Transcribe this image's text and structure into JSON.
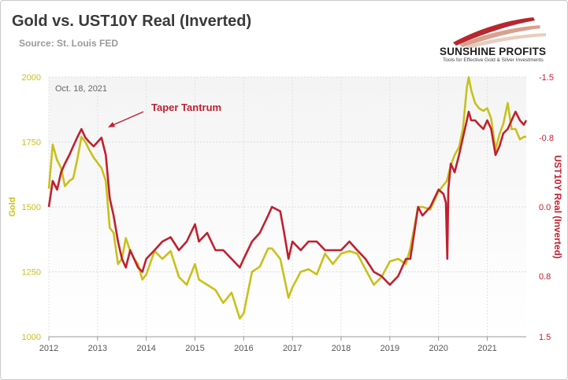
{
  "header": {
    "title": "Gold vs. UST10Y Real (Inverted)",
    "source": "Source: St. Louis FED"
  },
  "logo": {
    "name": "SUNSHINE PROFITS",
    "tagline": "Tools for Effective Gold & Silver Investments"
  },
  "colors": {
    "gold": "#c8c11a",
    "real_yield": "#c0202f",
    "plot_bg_top": "#f4f4f4",
    "plot_bg_bottom": "#ffffff",
    "axis_text": "#555555"
  },
  "chart_data": {
    "type": "line",
    "date_label": "Oct. 18, 2021",
    "annotation": {
      "text": "Taper Tantrum",
      "x": 2013.0,
      "y_right": -0.8
    },
    "xlabel": "",
    "xlim": [
      2012.0,
      2021.8
    ],
    "x_ticks": [
      "2012",
      "2013",
      "2014",
      "2015",
      "2016",
      "2017",
      "2018",
      "2019",
      "2020",
      "2021"
    ],
    "y_left": {
      "label": "Gold",
      "lim": [
        1000,
        2000
      ],
      "ticks": [
        "1000",
        "1250",
        "1500",
        "1750",
        "2000"
      ]
    },
    "y_right": {
      "label": "UST10Y Real (Inverted)",
      "lim": [
        -1.5,
        1.5
      ],
      "inverted": true,
      "ticks": [
        "-1.5",
        "-0.8",
        "0.0",
        "0.8",
        "1.5"
      ]
    },
    "grid": true,
    "series": [
      {
        "name": "Gold",
        "axis": "left",
        "x": [
          2012.0,
          2012.08,
          2012.17,
          2012.25,
          2012.33,
          2012.42,
          2012.5,
          2012.58,
          2012.67,
          2012.75,
          2012.83,
          2012.92,
          2013.0,
          2013.08,
          2013.17,
          2013.25,
          2013.33,
          2013.42,
          2013.5,
          2013.58,
          2013.67,
          2013.75,
          2013.83,
          2013.92,
          2014.0,
          2014.17,
          2014.33,
          2014.5,
          2014.67,
          2014.83,
          2015.0,
          2015.08,
          2015.25,
          2015.42,
          2015.58,
          2015.75,
          2015.92,
          2016.0,
          2016.17,
          2016.33,
          2016.5,
          2016.58,
          2016.75,
          2016.83,
          2016.92,
          2017.0,
          2017.17,
          2017.33,
          2017.5,
          2017.67,
          2017.83,
          2018.0,
          2018.17,
          2018.33,
          2018.5,
          2018.67,
          2018.83,
          2019.0,
          2019.17,
          2019.33,
          2019.42,
          2019.5,
          2019.58,
          2019.67,
          2019.83,
          2020.0,
          2020.17,
          2020.25,
          2020.33,
          2020.42,
          2020.5,
          2020.58,
          2020.62,
          2020.67,
          2020.75,
          2020.83,
          2020.92,
          2021.0,
          2021.08,
          2021.17,
          2021.25,
          2021.33,
          2021.42,
          2021.5,
          2021.58,
          2021.67,
          2021.75,
          2021.8
        ],
        "values": [
          1570,
          1740,
          1680,
          1650,
          1580,
          1600,
          1610,
          1680,
          1770,
          1750,
          1720,
          1690,
          1670,
          1650,
          1600,
          1420,
          1400,
          1280,
          1300,
          1380,
          1330,
          1300,
          1280,
          1220,
          1240,
          1330,
          1300,
          1330,
          1230,
          1200,
          1280,
          1220,
          1200,
          1180,
          1130,
          1170,
          1070,
          1090,
          1250,
          1270,
          1340,
          1340,
          1300,
          1230,
          1150,
          1190,
          1250,
          1260,
          1240,
          1320,
          1280,
          1320,
          1330,
          1320,
          1260,
          1200,
          1230,
          1290,
          1300,
          1280,
          1340,
          1420,
          1500,
          1500,
          1490,
          1560,
          1600,
          1660,
          1700,
          1730,
          1800,
          1960,
          2000,
          1950,
          1900,
          1880,
          1870,
          1880,
          1840,
          1720,
          1780,
          1820,
          1900,
          1800,
          1800,
          1760,
          1770,
          1770
        ]
      },
      {
        "name": "UST10Y Real (Inverted)",
        "axis": "right",
        "x": [
          2012.0,
          2012.08,
          2012.17,
          2012.25,
          2012.33,
          2012.42,
          2012.5,
          2012.58,
          2012.67,
          2012.75,
          2012.83,
          2012.92,
          2013.0,
          2013.08,
          2013.17,
          2013.25,
          2013.33,
          2013.42,
          2013.5,
          2013.58,
          2013.67,
          2013.75,
          2013.83,
          2013.92,
          2014.0,
          2014.17,
          2014.33,
          2014.5,
          2014.67,
          2014.83,
          2015.0,
          2015.08,
          2015.25,
          2015.42,
          2015.58,
          2015.75,
          2015.92,
          2016.0,
          2016.17,
          2016.33,
          2016.5,
          2016.58,
          2016.75,
          2016.83,
          2016.92,
          2017.0,
          2017.17,
          2017.33,
          2017.5,
          2017.67,
          2017.83,
          2018.0,
          2018.17,
          2018.33,
          2018.5,
          2018.67,
          2018.83,
          2019.0,
          2019.17,
          2019.33,
          2019.42,
          2019.5,
          2019.58,
          2019.67,
          2019.83,
          2020.0,
          2020.1,
          2020.15,
          2020.18,
          2020.2,
          2020.25,
          2020.33,
          2020.42,
          2020.5,
          2020.58,
          2020.62,
          2020.67,
          2020.75,
          2020.83,
          2020.92,
          2021.0,
          2021.08,
          2021.17,
          2021.25,
          2021.33,
          2021.42,
          2021.5,
          2021.58,
          2021.67,
          2021.75,
          2021.8
        ],
        "values": [
          0.0,
          -0.3,
          -0.2,
          -0.4,
          -0.5,
          -0.6,
          -0.7,
          -0.8,
          -0.9,
          -0.8,
          -0.75,
          -0.7,
          -0.75,
          -0.8,
          -0.6,
          -0.1,
          0.1,
          0.4,
          0.6,
          0.7,
          0.5,
          0.6,
          0.7,
          0.75,
          0.6,
          0.5,
          0.4,
          0.35,
          0.5,
          0.4,
          0.2,
          0.4,
          0.3,
          0.5,
          0.5,
          0.6,
          0.7,
          0.6,
          0.4,
          0.3,
          0.1,
          0.0,
          0.05,
          0.3,
          0.6,
          0.4,
          0.5,
          0.4,
          0.4,
          0.5,
          0.5,
          0.5,
          0.4,
          0.5,
          0.6,
          0.75,
          0.8,
          0.9,
          0.8,
          0.6,
          0.6,
          0.3,
          0.0,
          0.1,
          0.0,
          -0.2,
          -0.15,
          -0.05,
          0.6,
          -0.2,
          -0.5,
          -0.4,
          -0.6,
          -0.8,
          -1.0,
          -1.1,
          -1.0,
          -1.0,
          -0.95,
          -0.9,
          -1.0,
          -0.9,
          -0.6,
          -0.7,
          -0.85,
          -0.9,
          -1.0,
          -1.1,
          -1.0,
          -0.95,
          -1.0
        ]
      }
    ]
  }
}
